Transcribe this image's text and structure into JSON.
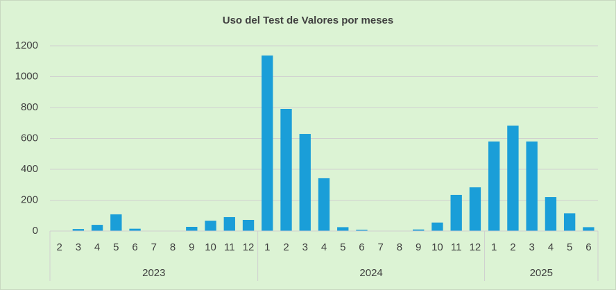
{
  "chart_data": {
    "type": "bar",
    "title": "Uso del Test de Valores por meses",
    "color": "#1a9ed8",
    "groups": [
      {
        "name": "2023",
        "months": [
          "2",
          "3",
          "4",
          "5",
          "6",
          "7",
          "8",
          "9",
          "10",
          "11",
          "12"
        ],
        "values": [
          0,
          13,
          40,
          108,
          15,
          0,
          0,
          27,
          67,
          90,
          72
        ]
      },
      {
        "name": "2024",
        "months": [
          "1",
          "2",
          "3",
          "4",
          "5",
          "6",
          "7",
          "8",
          "9",
          "10",
          "11",
          "12"
        ],
        "values": [
          1137,
          791,
          629,
          342,
          25,
          8,
          0,
          0,
          10,
          55,
          234,
          283
        ]
      },
      {
        "name": "2025",
        "months": [
          "1",
          "2",
          "3",
          "4",
          "5",
          "6"
        ],
        "values": [
          580,
          683,
          580,
          220,
          115,
          25
        ]
      }
    ],
    "ylim": [
      0,
      1200
    ],
    "yticks": [
      0,
      200,
      400,
      600,
      800,
      1000,
      1200
    ],
    "grid": true
  }
}
